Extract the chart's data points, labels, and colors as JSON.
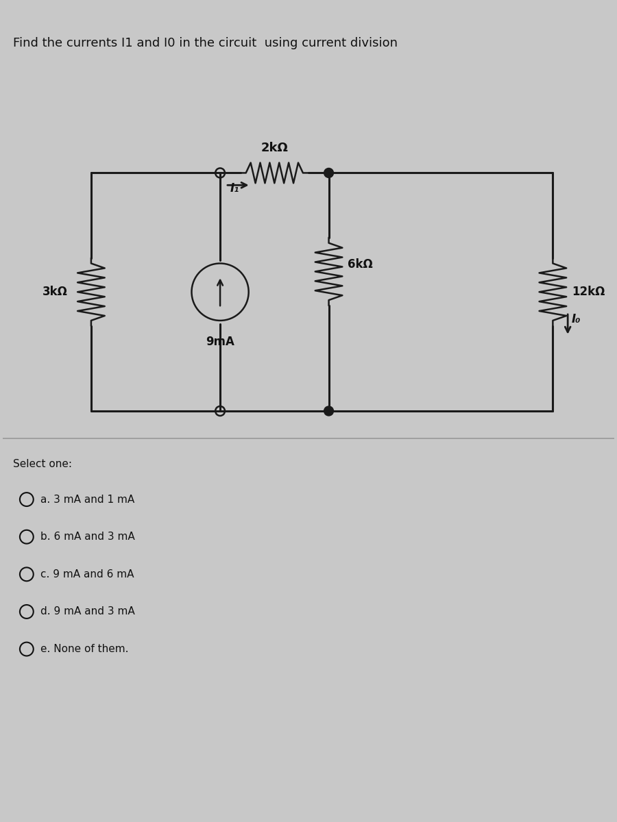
{
  "title": "Find the currents I1 and I0 in the circuit  using current division",
  "bg_color": "#c8c8c8",
  "panel_color": "#d4d4d4",
  "circuit_bg": "#d4d4d4",
  "wire_color": "#1a1a1a",
  "component_color": "#1a1a1a",
  "resistor_2k": "2kΩ",
  "resistor_3k": "3kΩ",
  "resistor_6k": "6kΩ",
  "resistor_12k": "12kΩ",
  "current_source": "9mA",
  "current_I1": "I₁",
  "current_I0": "I₀",
  "select_one": "Select one:",
  "options": [
    "a. 3 mA and 1 mA",
    "b. 6 mA and 3 mA",
    "c. 9 mA and 6 mA",
    "d. 9 mA and 3 mA",
    "e. None of them."
  ],
  "text_color": "#111111",
  "font_size_title": 13,
  "font_size_labels": 11,
  "font_size_options": 11
}
